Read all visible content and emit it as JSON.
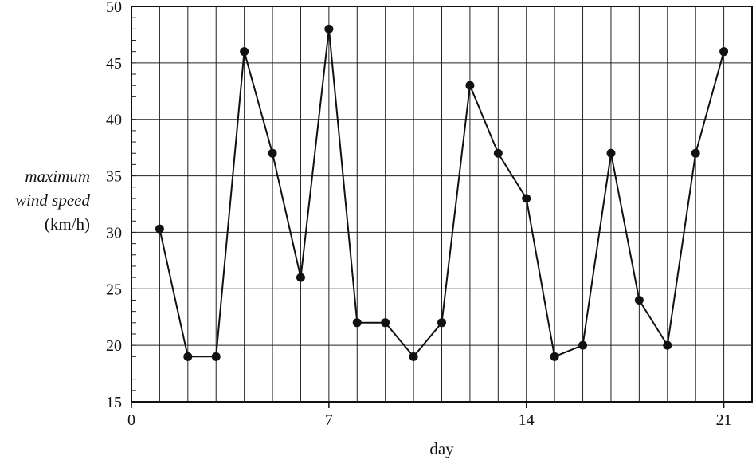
{
  "chart_data": {
    "type": "line",
    "title": "",
    "xlabel": "day",
    "ylabel_lines": [
      "maximum",
      "wind speed",
      "(km/h)"
    ],
    "xlim": [
      0,
      22
    ],
    "ylim": [
      15,
      50
    ],
    "x_ticks": [
      0,
      7,
      14,
      21
    ],
    "y_ticks": [
      15,
      20,
      25,
      30,
      35,
      40,
      45,
      50
    ],
    "x_grid_step": 1,
    "y_grid_major_step": 5,
    "y_grid_minor_step": 1,
    "grid": true,
    "x": [
      1,
      2,
      3,
      4,
      5,
      6,
      7,
      8,
      9,
      10,
      11,
      12,
      13,
      14,
      15,
      16,
      17,
      18,
      19,
      20,
      21
    ],
    "y": [
      30.3,
      19,
      19,
      46,
      37,
      26,
      48,
      22,
      22,
      19,
      22,
      43,
      37,
      33,
      19,
      20,
      37,
      24,
      20,
      37,
      46
    ],
    "line_color": "#111111",
    "marker_color": "#111111"
  }
}
